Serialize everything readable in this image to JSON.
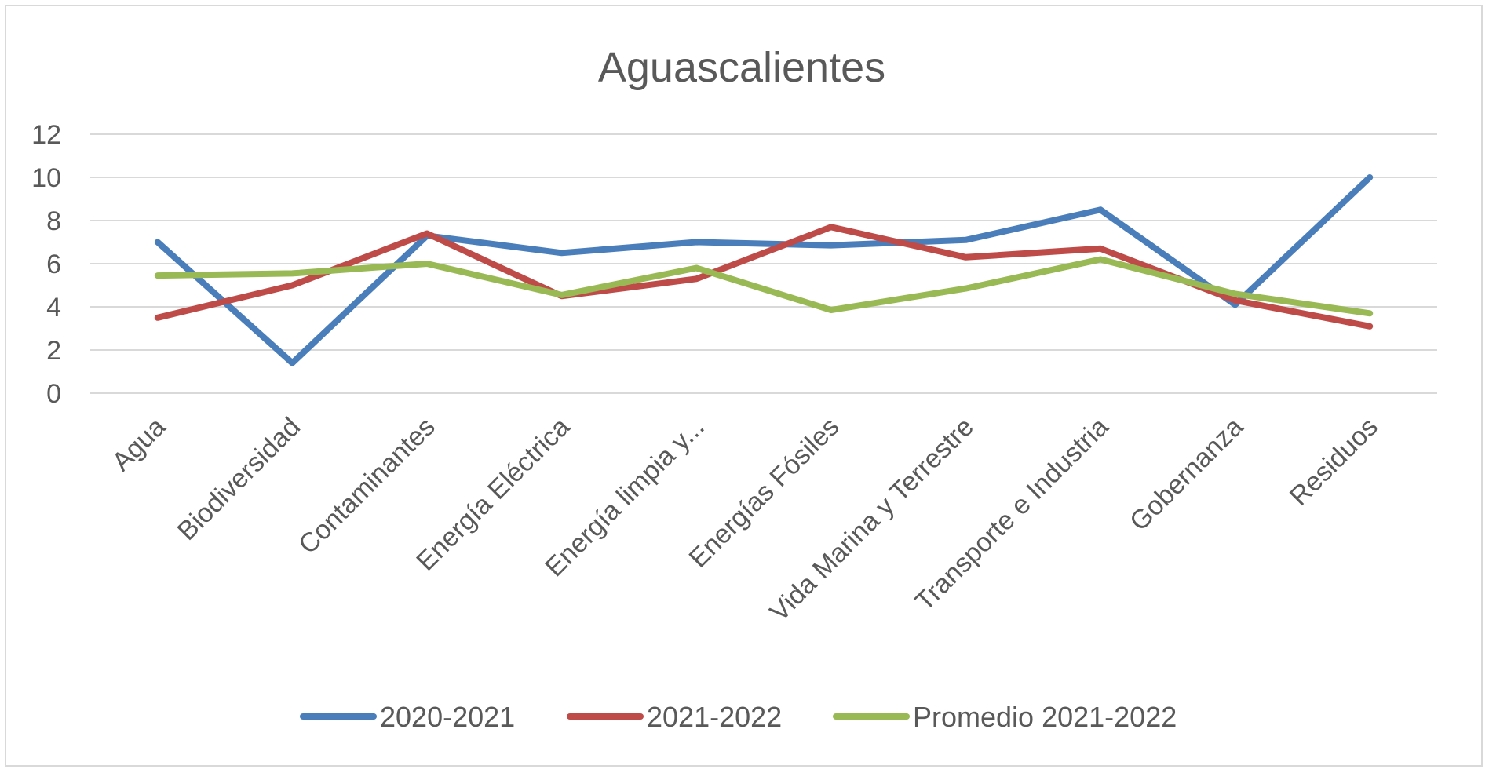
{
  "chart_data": {
    "type": "line",
    "title": "Aguascalientes",
    "xlabel": "",
    "ylabel": "",
    "ylim": [
      0,
      12
    ],
    "yticks": [
      0,
      2,
      4,
      6,
      8,
      10,
      12
    ],
    "grid": true,
    "legend_position": "bottom",
    "categories": [
      "Agua",
      "Biodiversidad",
      "Contaminantes",
      "Energía Eléctrica",
      "Energía limpia y...",
      "Energías Fósiles",
      "Vida Marina y Terrestre",
      "Transporte e Industria",
      "Gobernanza",
      "Residuos"
    ],
    "series": [
      {
        "name": "2020-2021",
        "color": "#4a7ebb",
        "values": [
          7.0,
          1.4,
          7.3,
          6.5,
          7.0,
          6.85,
          7.1,
          8.5,
          4.1,
          10.0
        ]
      },
      {
        "name": "2021-2022",
        "color": "#be4b48",
        "values": [
          3.5,
          5.0,
          7.4,
          4.5,
          5.3,
          7.7,
          6.3,
          6.7,
          4.3,
          3.1
        ]
      },
      {
        "name": "Promedio 2021-2022",
        "color": "#98b954",
        "values": [
          5.45,
          5.55,
          6.0,
          4.55,
          5.8,
          3.85,
          4.85,
          6.2,
          4.6,
          3.7
        ]
      }
    ]
  }
}
